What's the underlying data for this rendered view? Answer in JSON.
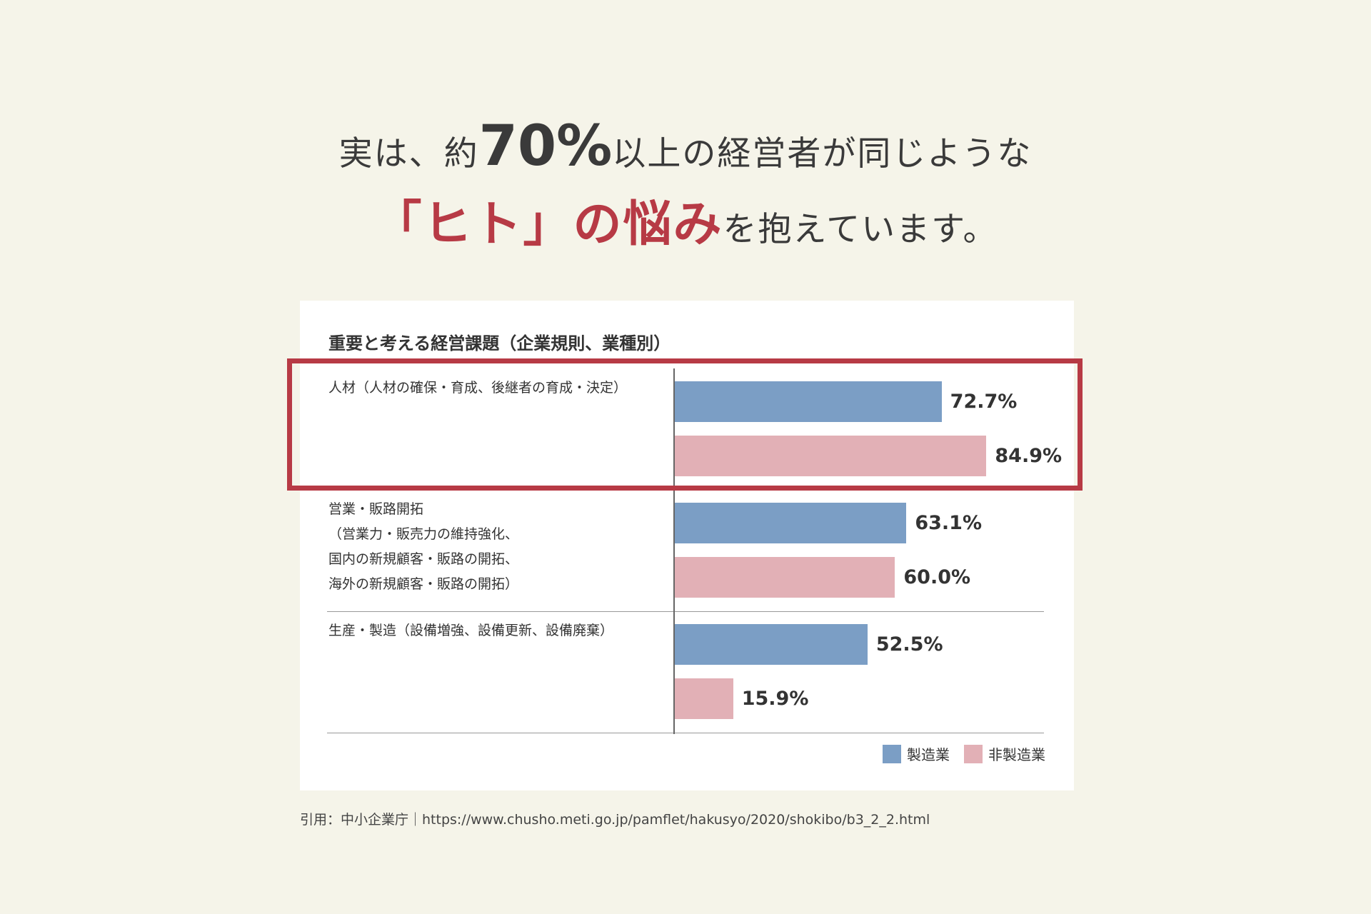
{
  "headline": {
    "l1_a": "実は、約",
    "l1_big": "70%",
    "l1_b": "以上の経営者が同じような",
    "l2_accent": "「ヒト」の悩み",
    "l2_b": "を抱えています。"
  },
  "colors": {
    "manufacturing": "#7b9ec5",
    "non_manufacturing": "#e2b0b6",
    "accent": "#b73a45"
  },
  "chart_data": {
    "type": "bar",
    "orientation": "horizontal",
    "title": "重要と考える経営課題（企業規則、業種別）",
    "categories": [
      [
        "人材（人材の確保・育成、後継者の育成・決定）"
      ],
      [
        "営業・販路開拓",
        "（営業力・販売力の維持強化、",
        "国内の新規顧客・販路の開拓、",
        "海外の新規顧客・販路の開拓）"
      ],
      [
        "生産・製造（設備増強、設備更新、設備廃棄）"
      ]
    ],
    "series": [
      {
        "name": "製造業",
        "values": [
          72.7,
          63.1,
          52.5
        ],
        "labels": [
          "72.7%",
          "63.1%",
          "52.5%"
        ]
      },
      {
        "name": "非製造業",
        "values": [
          84.9,
          60.0,
          15.9
        ],
        "labels": [
          "84.9%",
          "60.0%",
          "15.9%"
        ]
      }
    ],
    "xlim": [
      0,
      100
    ],
    "legend": "bottom-right",
    "highlighted_category": 0
  },
  "source": "引用：中小企業庁｜https://www.chusho.meti.go.jp/pamflet/hakusyo/2020/shokibo/b3_2_2.html"
}
